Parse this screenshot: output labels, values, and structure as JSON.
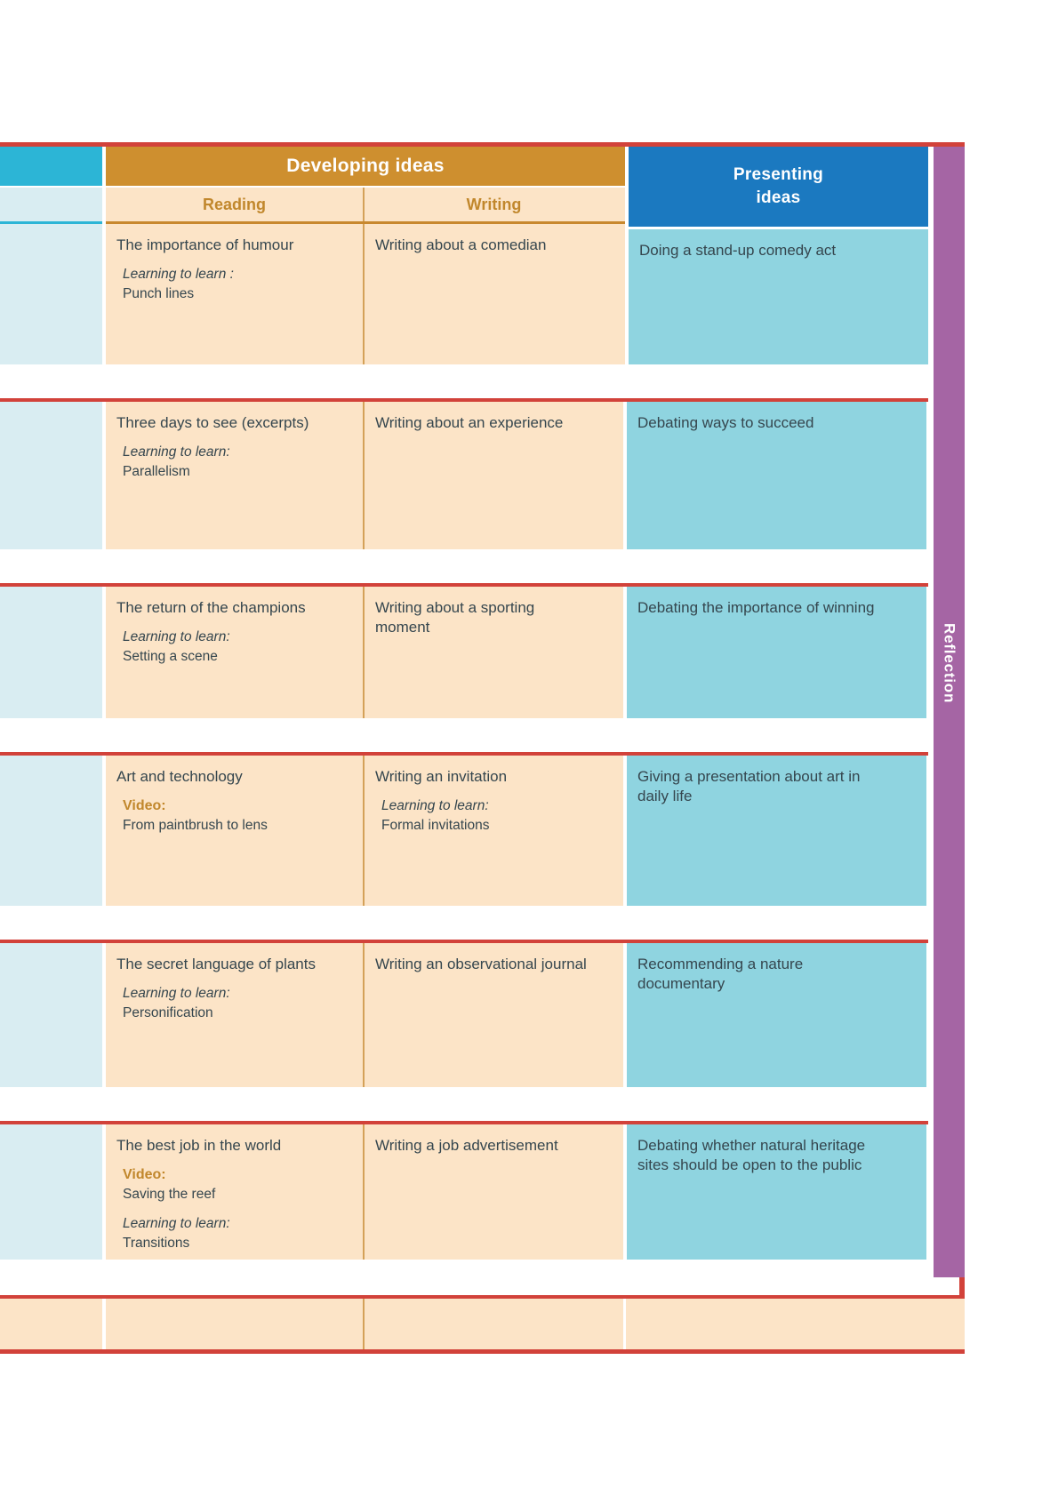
{
  "palette": {
    "red": "#d2423a",
    "orange": "#ce8f2f",
    "orangeline": "#c8882e",
    "divider": "#d4a158",
    "peach": "#fce4c7",
    "blue": "#1b79c0",
    "cyan": "#2cb5d6",
    "lightblue": "#d9edf2",
    "teal": "#8fd4e0",
    "purple": "#a565a4",
    "ink": "#35464e",
    "accent": "#c1872c"
  },
  "header": {
    "developing": "Developing ideas",
    "reading": "Reading",
    "writing": "Writing",
    "presenting": "Presenting\nideas"
  },
  "sidebar": {
    "label": "Reflection"
  },
  "rows": [
    {
      "reading": {
        "title": "The importance of humour",
        "learn_label": "Learning to learn :",
        "learn_text": "Punch lines"
      },
      "writing": {
        "title": "Writing about a comedian"
      },
      "presenting": {
        "title": "Doing a stand-up comedy act"
      }
    },
    {
      "reading": {
        "title": "Three days to see (excerpts)",
        "learn_label": "Learning to learn:",
        "learn_text": "Parallelism"
      },
      "writing": {
        "title": "Writing about an experience"
      },
      "presenting": {
        "title": "Debating ways to succeed"
      }
    },
    {
      "reading": {
        "title": "The return of the champions",
        "learn_label": "Learning to learn:",
        "learn_text": "Setting a scene"
      },
      "writing": {
        "title": "Writing about a sporting moment"
      },
      "presenting": {
        "title": "Debating the importance of winning"
      }
    },
    {
      "reading": {
        "title": "Art and technology",
        "video_label": "Video:",
        "video_text": "From paintbrush to lens"
      },
      "writing": {
        "title": "Writing an invitation",
        "learn_label": "Learning to learn:",
        "learn_text": "Formal invitations"
      },
      "presenting": {
        "title": "Giving a presentation about art in daily life"
      }
    },
    {
      "reading": {
        "title": "The secret language of plants",
        "learn_label": "Learning to learn:",
        "learn_text": "Personification"
      },
      "writing": {
        "title": "Writing an observational journal"
      },
      "presenting": {
        "title": "Recommending a nature documentary"
      }
    },
    {
      "reading": {
        "title": "The best job in the world",
        "video_label": "Video:",
        "video_text": "Saving the reef",
        "learn_label": "Learning to learn:",
        "learn_text": "Transitions"
      },
      "writing": {
        "title": "Writing a job advertisement"
      },
      "presenting": {
        "title": "Debating whether natural heritage sites should be open to the public"
      }
    }
  ]
}
